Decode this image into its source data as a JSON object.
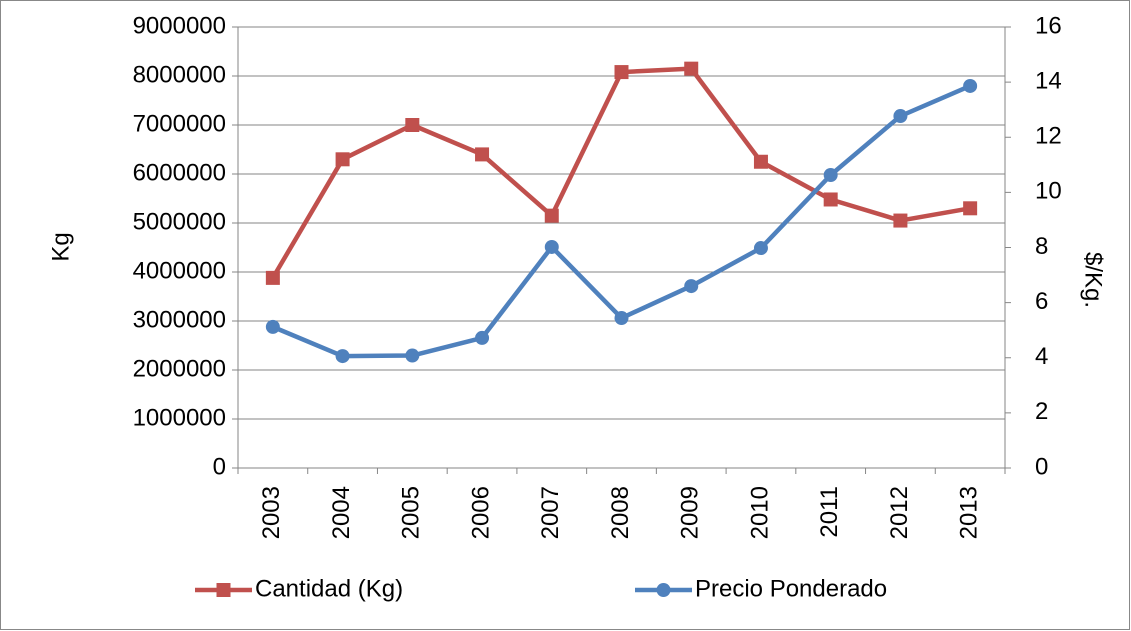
{
  "chart_data": {
    "type": "line",
    "ylabel": "Kg",
    "y2label": "$/Kg.",
    "categories": [
      "2003",
      "2004",
      "2005",
      "2006",
      "2007",
      "2008",
      "2009",
      "2010",
      "2011",
      "2012",
      "2013"
    ],
    "series": [
      {
        "name": "Cantidad (Kg)",
        "color": "#c0504d",
        "marker": "square",
        "values": [
          3880000,
          6300000,
          7000000,
          6400000,
          5150000,
          8080000,
          8150000,
          6250000,
          5480000,
          5050000,
          5300000
        ]
      },
      {
        "name": "Precio Ponderado",
        "color": "#4f81bd",
        "marker": "circle",
        "axis": "y2",
        "values": [
          5.12,
          4.06,
          4.08,
          4.72,
          8.02,
          5.44,
          6.6,
          7.98,
          10.63,
          12.77,
          13.86
        ]
      }
    ],
    "ylim": [
      0,
      9000000
    ],
    "yticks": [
      0,
      1000000,
      2000000,
      3000000,
      4000000,
      5000000,
      6000000,
      7000000,
      8000000,
      9000000
    ],
    "y2lim": [
      0,
      16
    ],
    "y2ticks": [
      0,
      2,
      4,
      6,
      8,
      10,
      12,
      14,
      16
    ],
    "grid": true,
    "legend": "bottom"
  }
}
